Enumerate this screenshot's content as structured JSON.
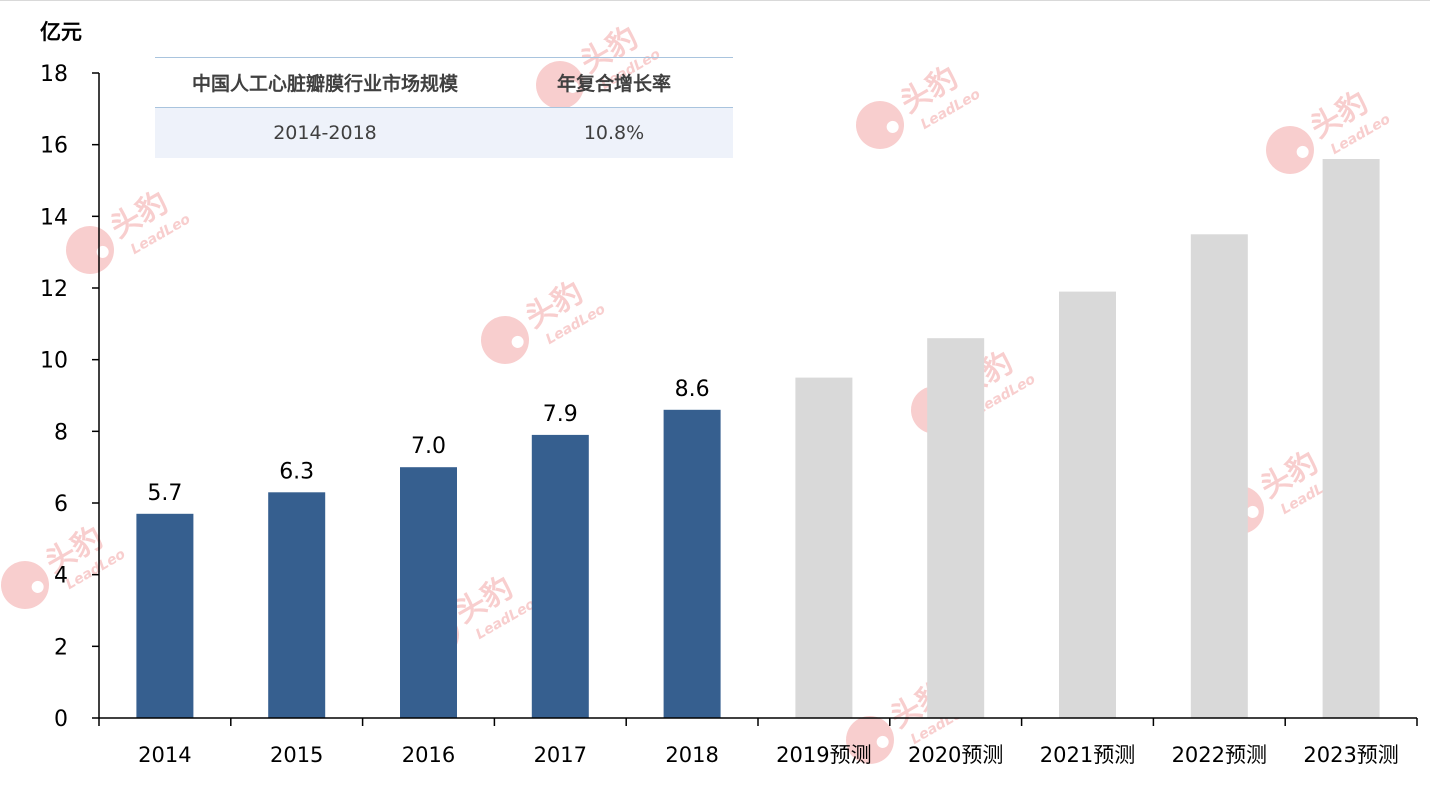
{
  "unit_label": "亿元",
  "summary_table": {
    "headers": [
      "中国人工心脏瓣膜行业市场规模",
      "年复合增长率"
    ],
    "rows": [
      [
        "2014-2018",
        "10.8%"
      ]
    ]
  },
  "watermark": {
    "brand": "头豹",
    "sub": "LeadLeo"
  },
  "colors": {
    "actual": "#365f8f",
    "forecast": "#d9d9d9",
    "watermark": "#f3a7a7"
  },
  "chart_data": {
    "type": "bar",
    "categories": [
      "2014",
      "2015",
      "2016",
      "2017",
      "2018",
      "2019预测",
      "2020预测",
      "2021预测",
      "2022预测",
      "2023预测"
    ],
    "values": [
      5.7,
      6.3,
      7.0,
      7.9,
      8.6,
      9.5,
      10.6,
      11.9,
      13.5,
      15.6
    ],
    "data_labels": [
      "5.7",
      "6.3",
      "7.0",
      "7.9",
      "8.6",
      "",
      "",
      "",
      "",
      ""
    ],
    "forecast_from_index": 5,
    "ylabel": "亿元",
    "ylim": [
      0,
      18
    ],
    "yticks": [
      0,
      2,
      4,
      6,
      8,
      10,
      12,
      14,
      16,
      18
    ],
    "grid": false,
    "legend": "none"
  }
}
